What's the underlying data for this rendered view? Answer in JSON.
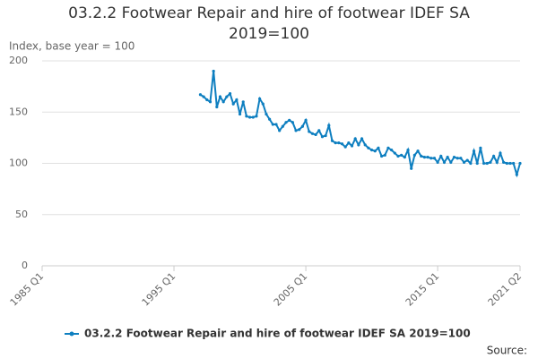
{
  "chart_data": {
    "type": "line",
    "title": "03.2.2 Footwear Repair and hire of footwear IDEF SA 2019=100",
    "y_label": "Index, base year = 100",
    "source": "Source:",
    "categories": [
      "1985 Q1",
      null,
      null,
      null,
      null,
      null,
      null,
      null,
      null,
      null,
      null,
      null,
      null,
      null,
      null,
      null,
      null,
      null,
      null,
      null,
      null,
      null,
      null,
      null,
      null,
      null,
      null,
      null,
      null,
      null,
      null,
      null,
      null,
      null,
      null,
      null,
      null,
      null,
      null,
      null,
      "1995 Q1",
      null,
      null,
      null,
      null,
      null,
      null,
      null,
      null,
      null,
      null,
      null,
      null,
      null,
      null,
      null,
      null,
      null,
      null,
      null,
      null,
      null,
      null,
      null,
      null,
      null,
      null,
      null,
      null,
      null,
      null,
      null,
      null,
      null,
      null,
      null,
      null,
      null,
      null,
      null,
      "2005 Q1",
      null,
      null,
      null,
      null,
      null,
      null,
      null,
      null,
      null,
      null,
      null,
      null,
      null,
      null,
      null,
      null,
      null,
      null,
      null,
      null,
      null,
      null,
      null,
      null,
      null,
      null,
      null,
      null,
      null,
      null,
      null,
      null,
      null,
      null,
      null,
      null,
      null,
      null,
      null,
      "2015 Q1",
      null,
      null,
      null,
      null,
      null,
      null,
      null,
      null,
      null,
      null,
      null,
      null,
      null,
      null,
      null,
      null,
      null,
      null,
      null,
      null,
      null,
      null,
      null,
      null,
      "2021 Q2"
    ],
    "series": [
      {
        "name": "03.2.2 Footwear Repair and hire of footwear IDEF SA 2019=100",
        "color": "#0e7fc0",
        "values": [
          null,
          null,
          null,
          null,
          null,
          null,
          null,
          null,
          null,
          null,
          null,
          null,
          null,
          null,
          null,
          null,
          null,
          null,
          null,
          null,
          null,
          null,
          null,
          null,
          null,
          null,
          null,
          null,
          null,
          null,
          null,
          null,
          null,
          null,
          null,
          null,
          null,
          null,
          null,
          null,
          null,
          null,
          null,
          null,
          null,
          null,
          null,
          null,
          167,
          165,
          162,
          160,
          190,
          155,
          165,
          160,
          165,
          168,
          158,
          162,
          148,
          160,
          146,
          145,
          145,
          146,
          163,
          158,
          148,
          143,
          138,
          138,
          132,
          136,
          140,
          142,
          140,
          132,
          133,
          136,
          142,
          131,
          129,
          128,
          132,
          126,
          127,
          137,
          122,
          120,
          120,
          119,
          116,
          120,
          117,
          124,
          118,
          124,
          118,
          115,
          113,
          112,
          115,
          107,
          108,
          115,
          113,
          110,
          107,
          108,
          106,
          113,
          95,
          108,
          112,
          107,
          106,
          106,
          105,
          105,
          101,
          107,
          101,
          106,
          101,
          106,
          105,
          105,
          101,
          103,
          100,
          112,
          100,
          115,
          100,
          100,
          101,
          107,
          101,
          110,
          101,
          100,
          100,
          100,
          89,
          100
        ]
      }
    ],
    "ylim": [
      0,
      200
    ],
    "yticks": [
      0,
      50,
      100,
      150,
      200
    ],
    "grid": true
  }
}
